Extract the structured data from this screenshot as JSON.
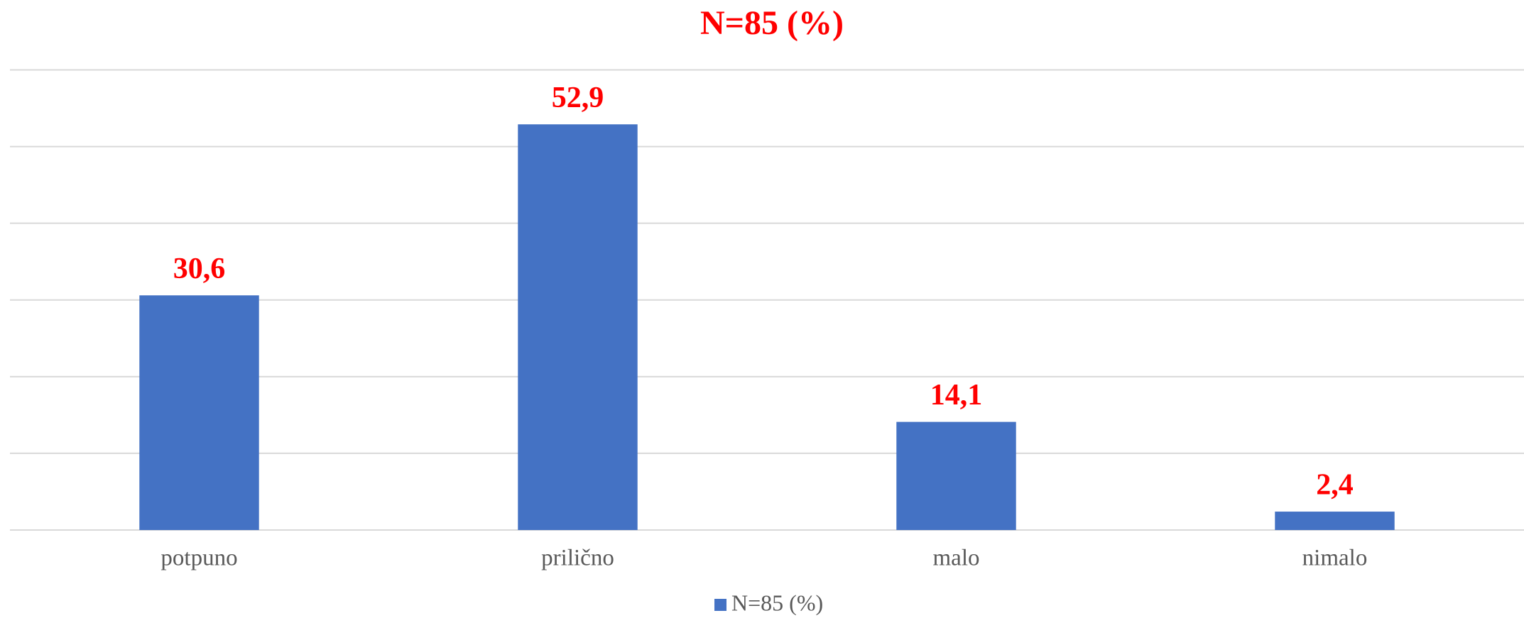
{
  "chart_data": {
    "type": "bar",
    "title": "N=85 (%)",
    "categories": [
      "potpuno",
      "prilično",
      "malo",
      "nimalo"
    ],
    "series": [
      {
        "name": "N=85 (%)",
        "color": "#4472c4",
        "values": [
          30.6,
          52.9,
          14.1,
          2.4
        ],
        "value_labels": [
          "30,6",
          "52,9",
          "14,1",
          "2,4"
        ]
      }
    ],
    "ylim": [
      0,
      60
    ],
    "yticks": [
      0,
      10,
      20,
      30,
      40,
      50,
      60
    ],
    "grid": true,
    "label_color": "#ff0000",
    "legend": "bottom"
  }
}
